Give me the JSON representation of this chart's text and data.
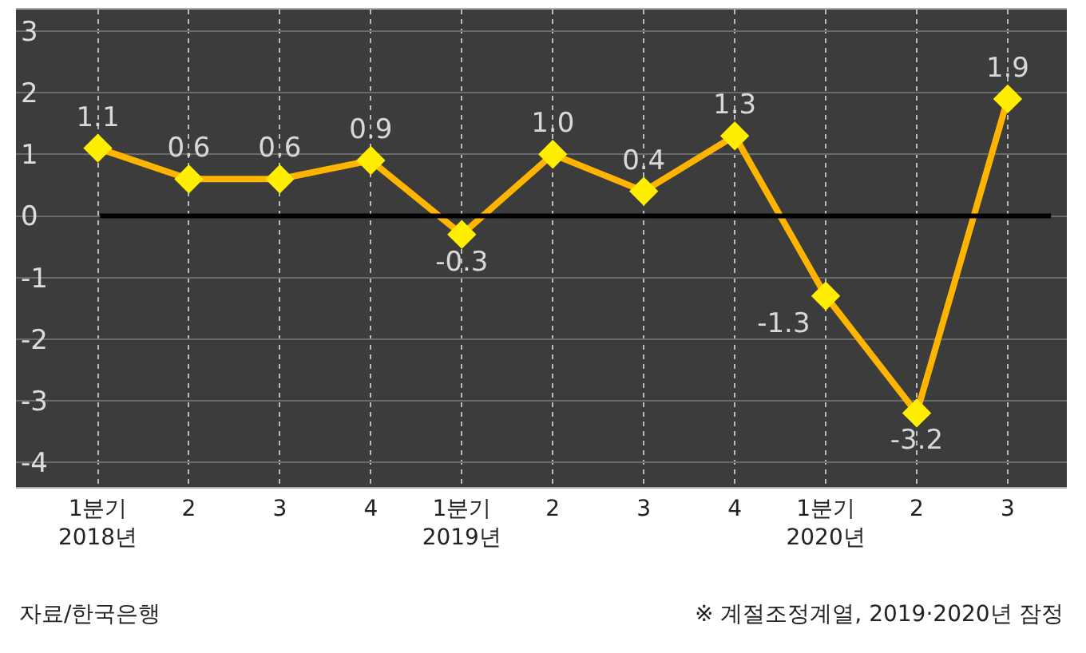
{
  "chart_data": {
    "type": "line",
    "categories": [
      "1분기\n2018년",
      "2",
      "3",
      "4",
      "1분기\n2019년",
      "2",
      "3",
      "4",
      "1분기\n2020년",
      "2",
      "3"
    ],
    "series": [
      {
        "color": "#ffb400",
        "values": [
          1.1,
          0.6,
          0.6,
          0.9,
          -0.3,
          1.0,
          0.4,
          1.3,
          -1.3,
          -3.2,
          1.9
        ],
        "value_labels": [
          "1.1",
          "0.6",
          "0.6",
          "0.9",
          "-0.3",
          "1.0",
          "0.4",
          "1.3",
          "-1.3",
          "-3.2",
          "1.9"
        ]
      }
    ],
    "ylim": [
      -4.4,
      3.35
    ],
    "yticks": [
      -4,
      -3,
      -2,
      -1,
      0,
      1,
      2,
      3
    ],
    "ref_lines": [
      {
        "axis": "y",
        "value": 0,
        "color": "#000000"
      }
    ],
    "grid": true,
    "marker": "diamond",
    "annotations": [
      "자료/한국은행",
      "※ 계절조정계열, 2019·2020년 잠정"
    ]
  }
}
